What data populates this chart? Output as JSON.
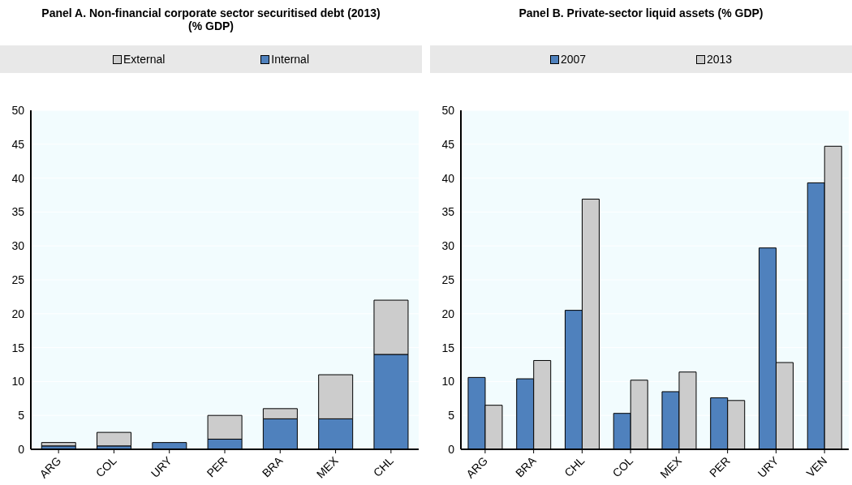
{
  "chart_data": [
    {
      "type": "bar",
      "title": "Panel A. Non-financial corporate sector securitised debt (2013)\n(% GDP)",
      "categories": [
        "ARG",
        "COL",
        "URY",
        "PER",
        "BRA",
        "MEX",
        "CHL"
      ],
      "stacked": true,
      "series": [
        {
          "name": "Internal",
          "color": "#4f81bd",
          "values": [
            0.5,
            0.5,
            1,
            1.5,
            4.5,
            4.5,
            14
          ]
        },
        {
          "name": "External",
          "color": "#cccccc",
          "values": [
            0.5,
            2,
            0,
            3.5,
            1.5,
            6.5,
            8
          ]
        }
      ],
      "ylim": [
        0,
        50
      ],
      "yticks": [
        0,
        5,
        10,
        15,
        20,
        25,
        30,
        35,
        40,
        45,
        50
      ],
      "grid": "y",
      "legend": "top"
    },
    {
      "type": "bar",
      "title": "Panel  B. Private-sector liquid assets  (% GDP)",
      "categories": [
        "ARG",
        "BRA",
        "CHL",
        "COL",
        "MEX",
        "PER",
        "URY",
        "VEN"
      ],
      "series": [
        {
          "name": "2007",
          "color": "#4f81bd",
          "values": [
            10.6,
            10.4,
            20.5,
            5.3,
            8.5,
            7.6,
            29.7,
            39.3
          ]
        },
        {
          "name": "2013",
          "color": "#cccccc",
          "values": [
            6.5,
            13.1,
            36.9,
            10.2,
            11.4,
            7.2,
            12.8,
            44.7
          ]
        }
      ],
      "ylim": [
        0,
        50
      ],
      "yticks": [
        0,
        5,
        10,
        15,
        20,
        25,
        30,
        35,
        40,
        45,
        50
      ],
      "grid": "y",
      "legend": "top"
    }
  ]
}
